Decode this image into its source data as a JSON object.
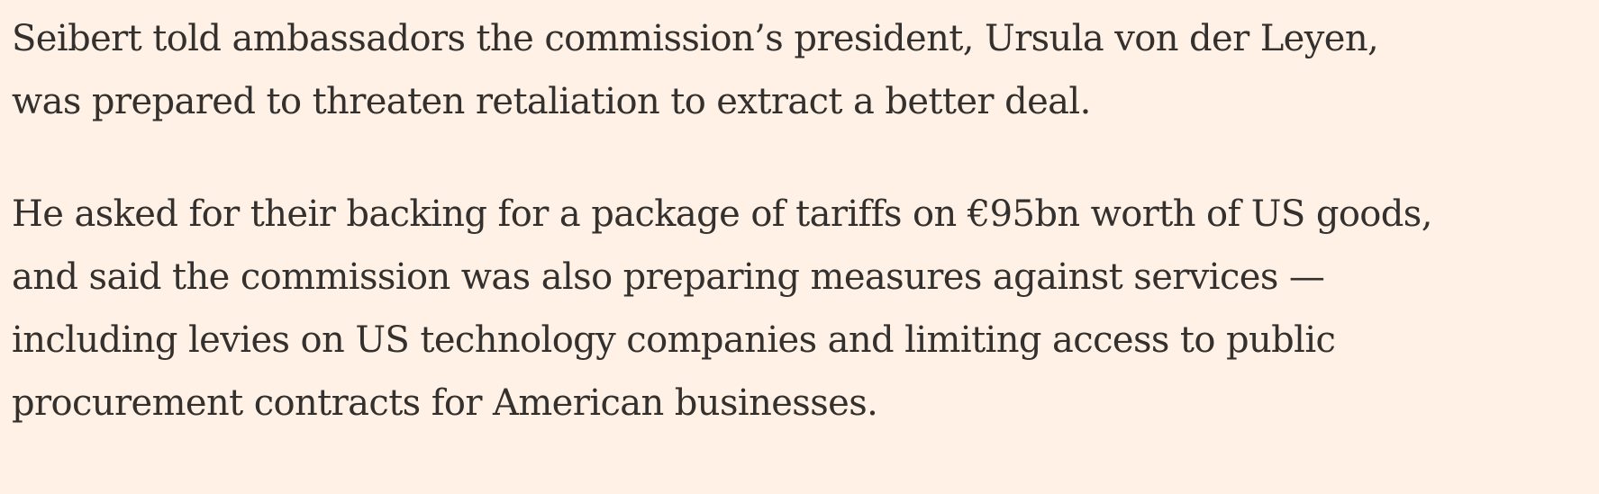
{
  "article": {
    "paragraphs": [
      {
        "lines": [
          "Seibert told ambassadors the commission’s president, Ursula von der Leyen,",
          "was prepared to threaten retaliation to extract a better deal."
        ]
      },
      {
        "lines": [
          "He asked for their backing for a package of tariffs on €95bn worth of US goods,",
          "and said the commission was also preparing measures against services —",
          "including levies on US technology companies and limiting access to public",
          "procurement contracts for American businesses."
        ]
      }
    ]
  },
  "colors": {
    "background": "#FFF1E5",
    "text": "#33302E"
  }
}
